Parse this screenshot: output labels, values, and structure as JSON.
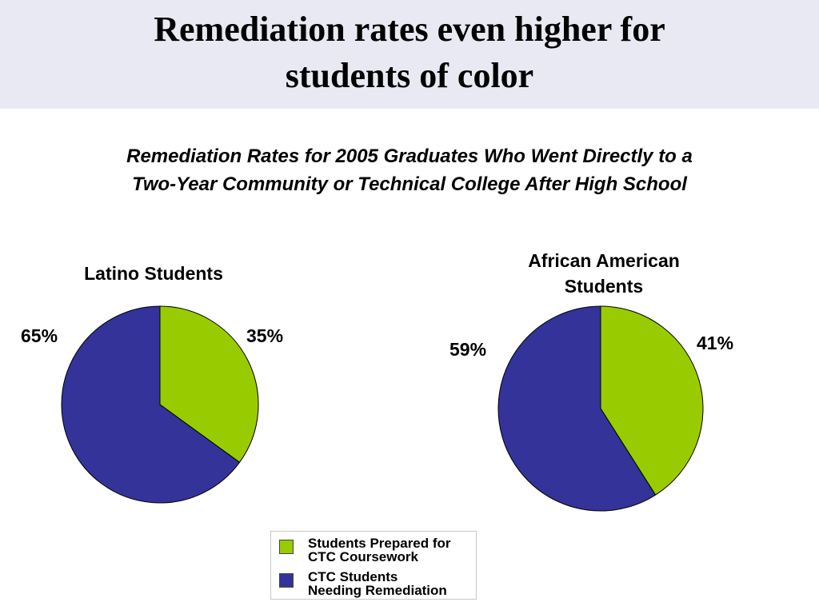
{
  "slide": {
    "title": "Remediation rates even higher for\nstudents of color",
    "subtitle": "Remediation Rates for 2005 Graduates Who Went Directly to a\nTwo-Year Community or Technical College After High School"
  },
  "colors": {
    "prepared": "#99cc00",
    "remediation": "#333399",
    "title_band": "#e9e9f3"
  },
  "legend": [
    {
      "label": "Students Prepared for\nCTC Coursework",
      "color": "#99cc00"
    },
    {
      "label": "CTC Students\nNeeding Remediation",
      "color": "#333399"
    }
  ],
  "chart_data": [
    {
      "type": "pie",
      "title": "Latino Students",
      "categories": [
        "Students Prepared for CTC Coursework",
        "CTC Students Needing Remediation"
      ],
      "values": [
        35,
        65
      ],
      "labels": [
        "35%",
        "65%"
      ],
      "colors": [
        "#99cc00",
        "#333399"
      ]
    },
    {
      "type": "pie",
      "title": "African American\nStudents",
      "categories": [
        "Students Prepared for CTC Coursework",
        "CTC Students Needing Remediation"
      ],
      "values": [
        41,
        59
      ],
      "labels": [
        "41%",
        "59%"
      ],
      "colors": [
        "#99cc00",
        "#333399"
      ]
    }
  ]
}
